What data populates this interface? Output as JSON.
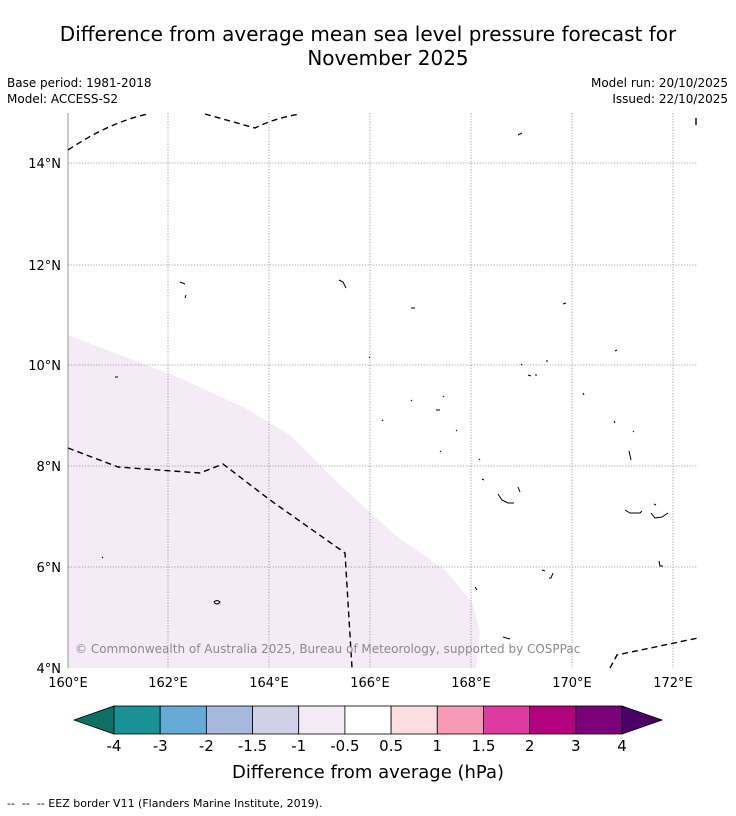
{
  "header": {
    "title_line1": "Difference from average mean sea level pressure forecast for",
    "title_line2": "November 2025",
    "base_period": "Base period: 1981-2018",
    "model": "Model: ACCESS-S2",
    "model_run": "Model run: 20/10/2025",
    "issued": "Issued: 22/10/2025"
  },
  "map": {
    "lat_labels": [
      "14°N",
      "12°N",
      "10°N",
      "8°N",
      "6°N",
      "4°N"
    ],
    "lon_labels": [
      "160°E",
      "162°E",
      "164°E",
      "166°E",
      "168°E",
      "170°E",
      "172°E"
    ],
    "anomaly_region_class": "-1 to -0.5 hPa",
    "copyright": "© Commonwealth of Australia 2025, Bureau of Meteorology, supported by COSPPac"
  },
  "colorbar": {
    "title": "Difference from average (hPa)",
    "tick_labels": [
      "-4",
      "-3",
      "-2",
      "-1.5",
      "-1",
      "-0.5",
      "0.5",
      "1",
      "1.5",
      "2",
      "3",
      "4"
    ],
    "colors": {
      "below": "#0e6f63",
      "bins": [
        "#1a9196",
        "#66aad5",
        "#a6b9da",
        "#d0d0e6",
        "#f4ebf6",
        "#ffffff",
        "#fddde0",
        "#f79ab7",
        "#de3ba0",
        "#b2027e",
        "#7a0177"
      ],
      "above": "#4b0068"
    }
  },
  "footer": {
    "legend_text": "--  --  -- EEZ border V11 (Flanders Marine Institute, 2019)."
  }
}
